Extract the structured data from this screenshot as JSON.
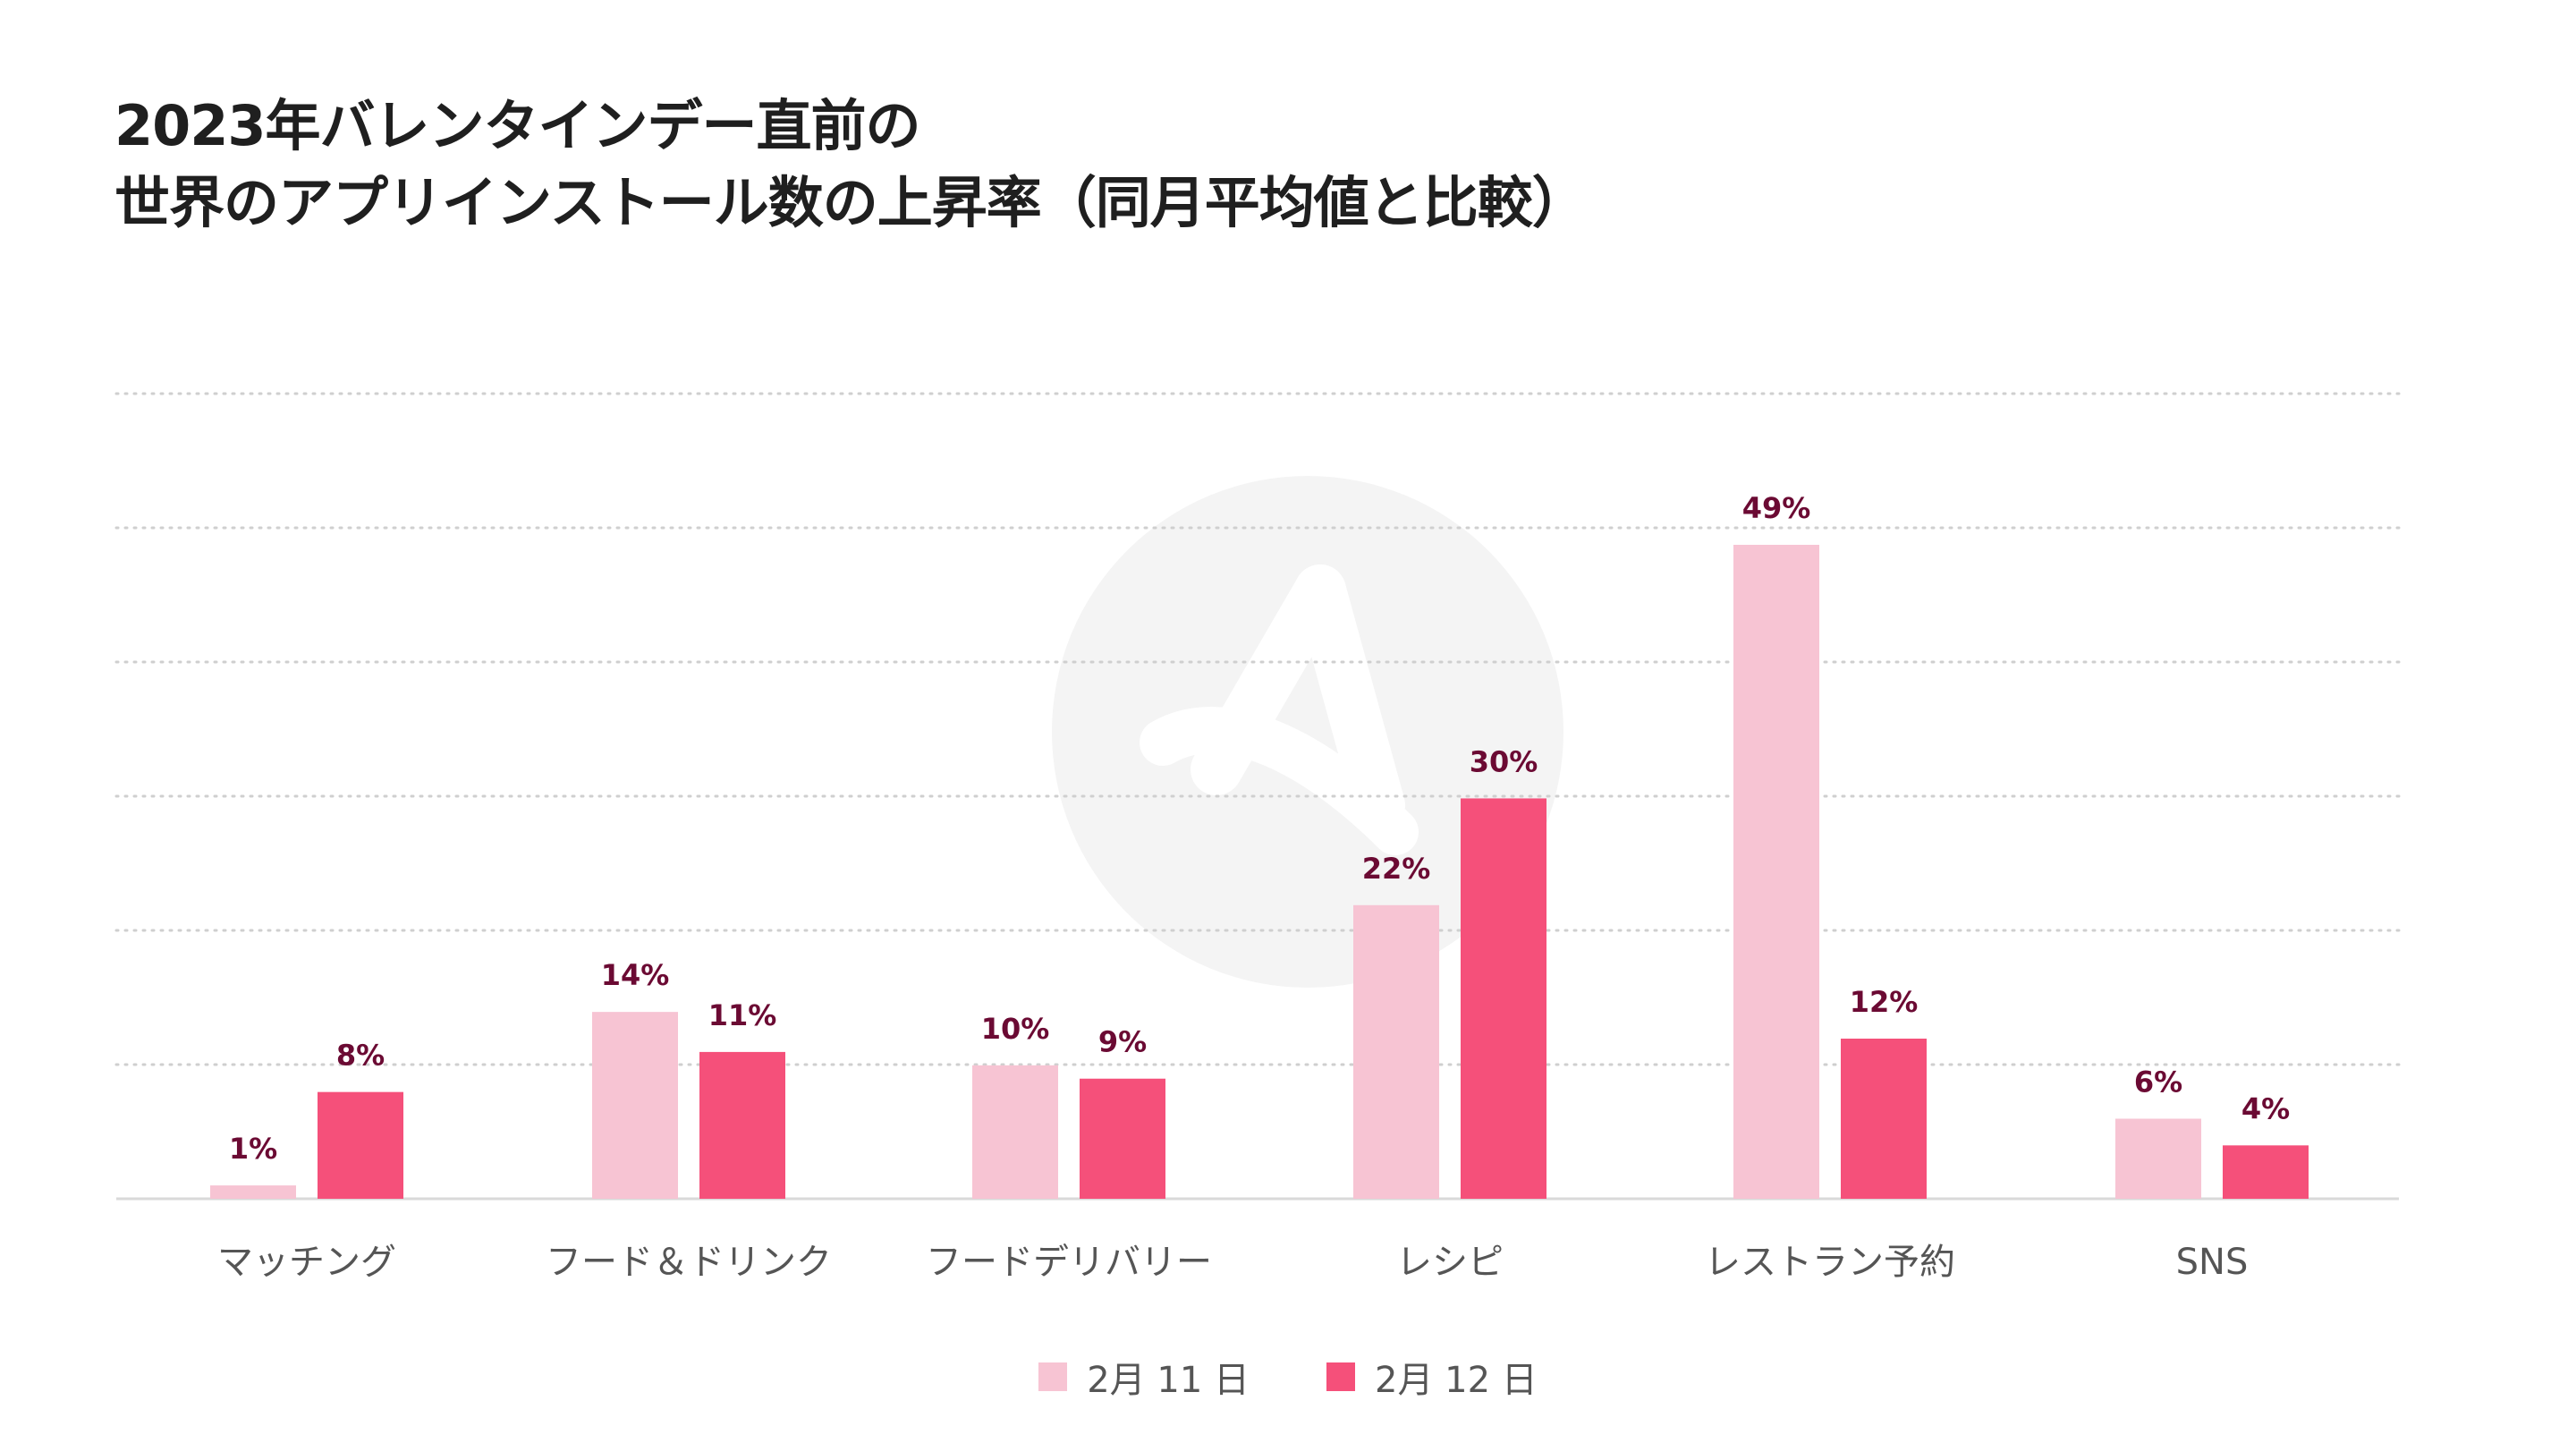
{
  "title": {
    "line1": "2023年バレンタインデー直前の",
    "line2": "世界のアプリインストール数の上昇率（同月平均値と比較）"
  },
  "chart_data": {
    "type": "bar",
    "categories": [
      "マッチング",
      "フード＆ドリンク",
      "フードデリバリー",
      "レシピ",
      "レストラン予約",
      "SNS"
    ],
    "series": [
      {
        "name": "2月 11 日",
        "color": "#f7c4d3",
        "values": [
          1,
          14,
          10,
          22,
          49,
          6
        ],
        "labels": [
          "1%",
          "14%",
          "10%",
          "22%",
          "49%",
          "6%"
        ]
      },
      {
        "name": "2月 12 日",
        "color": "#f5507a",
        "values": [
          8,
          11,
          9,
          30,
          12,
          4
        ],
        "labels": [
          "8%",
          "11%",
          "9%",
          "30%",
          "12%",
          "4%"
        ]
      }
    ],
    "ylim": [
      0,
      61
    ],
    "grid": true,
    "legend_position": "bottom-center",
    "label_color": "#6b0a33"
  }
}
